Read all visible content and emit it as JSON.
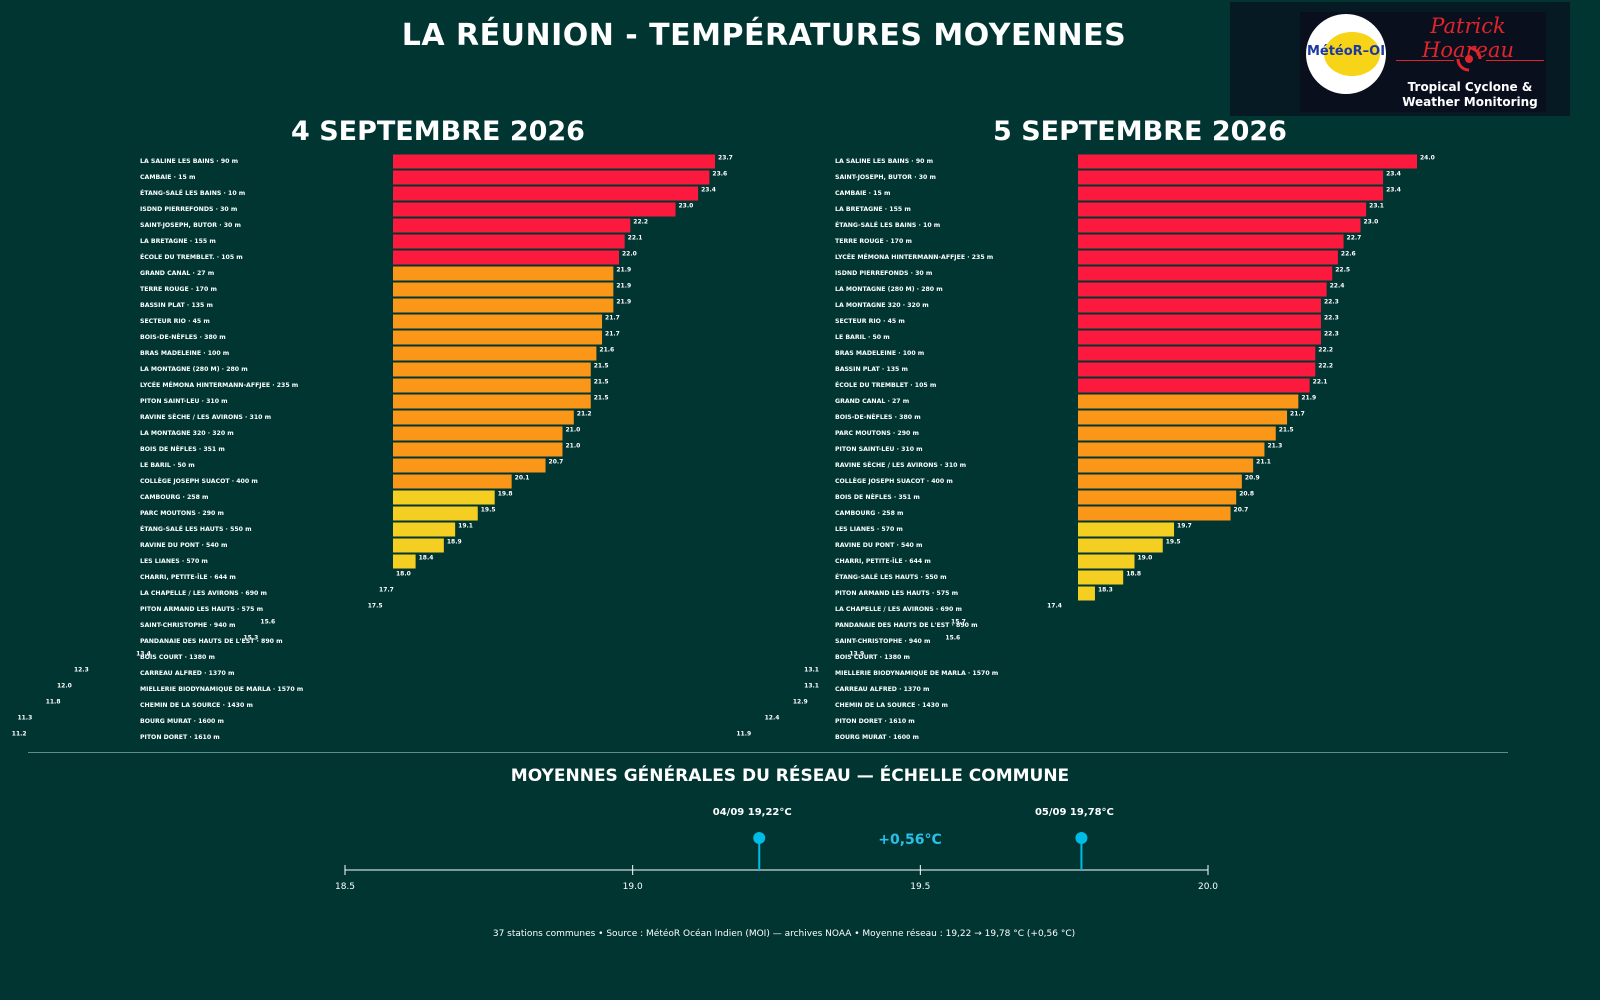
{
  "title": "LA RÉUNION - TEMPÉRATURES MOYENNES",
  "logo": {
    "circle_text": "MétéoR–OI",
    "script_text": "Patrick Hoareau",
    "tagline_1": "Tropical Cyclone &",
    "tagline_2": "Weather Monitoring"
  },
  "colors": {
    "background": "#003532",
    "red": "#fb1a3e",
    "orange": "#fa9718",
    "yellow": "#f4cf22",
    "green": "#61ad2d",
    "teal": "#24a56d",
    "cyan": "#2a98a5",
    "blue": "#2f86bd",
    "marker": "#00bce6"
  },
  "chart_data": [
    {
      "type": "bar",
      "orientation": "horizontal",
      "title": "4 SEPTEMBRE 2026",
      "bar_origin": 18.0,
      "categories": [
        "LA SALINE LES BAINS  ·  90 m",
        "CAMBAIE  ·  15 m",
        "ÉTANG-SALÉ LES BAINS  ·  10 m",
        "ISDND PIERREFONDS  ·  30 m",
        "SAINT-JOSEPH, BUTOR  ·  30 m",
        "LA BRETAGNE  ·  155 m",
        "ÉCOLE DU TREMBLET.  ·  105 m",
        "GRAND CANAL  ·  27 m",
        "TERRE ROUGE  ·  170 m",
        "BASSIN PLAT  ·  135 m",
        "SECTEUR RIO  ·  45 m",
        "BOIS-DE-NÈFLES  ·  380 m",
        "BRAS MADELEINE  ·  100 m",
        "LA MONTAGNE (280 M)  ·  280 m",
        "LYCÉE MÉMONA HINTERMANN-AFFJEE  ·  235 m",
        "PITON SAINT-LEU  ·  310 m",
        "RAVINE SÈCHE / LES AVIRONS  ·  310 m",
        "LA MONTAGNE 320  ·  320 m",
        "BOIS DE NÈFLES  ·  351 m",
        "LE BARIL  ·  50 m",
        "COLLÈGE JOSEPH SUACOT  ·  400 m",
        "CAMBOURG  ·  258 m",
        "PARC MOUTONS  ·  290 m",
        "ÉTANG-SALÉ LES HAUTS  ·  550 m",
        "RAVINE DU PONT  ·  540 m",
        "LES LIANES  ·  570 m",
        "CHARRI, PETITE-ÎLE  ·  644 m",
        "LA CHAPELLE / LES AVIRONS  ·  690 m",
        "PITON ARMAND LES HAUTS  ·  575 m",
        "SAINT-CHRISTOPHE  ·  940 m",
        "PANDANAIE DES HAUTS DE L'EST  ·  890 m",
        "BOIS COURT  ·  1380 m",
        "CARREAU ALFRED  ·  1370 m",
        "MIELLERIE BIODYNAMIQUE DE MARLA  ·  1570 m",
        "CHEMIN DE LA SOURCE  ·  1430 m",
        "BOURG MURAT  ·  1600 m",
        "PITON DORET  ·  1610 m"
      ],
      "values": [
        23.7,
        23.6,
        23.4,
        23.0,
        22.2,
        22.1,
        22.0,
        21.9,
        21.9,
        21.9,
        21.7,
        21.7,
        21.6,
        21.5,
        21.5,
        21.5,
        21.2,
        21.0,
        21.0,
        20.7,
        20.1,
        19.8,
        19.5,
        19.1,
        18.9,
        18.4,
        18.0,
        17.7,
        17.5,
        15.6,
        15.3,
        13.4,
        12.3,
        12.0,
        11.8,
        11.3,
        11.2
      ],
      "value_labels": [
        "23.7",
        "23.6",
        "23.4",
        "23.0",
        "22.2",
        "22.1",
        "22.0",
        "21.9",
        "21.9",
        "21.9",
        "21.7",
        "21.7",
        "21.6",
        "21.5",
        "21.5",
        "21.5",
        "21.2",
        "21.0",
        "21.0",
        "20.7",
        "20.1",
        "19.8",
        "19.5",
        "19.1",
        "18.9",
        "18.4",
        "18.0",
        "17.7",
        "17.5",
        "15.6",
        "15.3",
        "13.4",
        "12.3",
        "12.0",
        "11.8",
        "11.3",
        "11.2"
      ]
    },
    {
      "type": "bar",
      "orientation": "horizontal",
      "title": "5 SEPTEMBRE 2026",
      "bar_origin": 18.0,
      "categories": [
        "LA SALINE LES BAINS  ·  90 m",
        "SAINT-JOSEPH, BUTOR  ·  30 m",
        "CAMBAIE  ·  15 m",
        "LA BRETAGNE  ·  155 m",
        "ÉTANG-SALÉ LES BAINS  ·  10 m",
        "TERRE ROUGE  ·  170 m",
        "LYCÉE MÉMONA HINTERMANN-AFFJEE  ·  235 m",
        "ISDND PIERREFONDS  ·  30 m",
        "LA MONTAGNE (280 M)  ·  280 m",
        "LA MONTAGNE 320  ·  320 m",
        "SECTEUR RIO  ·  45 m",
        "LE BARIL  ·  50 m",
        "BRAS MADELEINE  ·  100 m",
        "BASSIN PLAT  ·  135 m",
        "ÉCOLE DU TREMBLET  ·  105 m",
        "GRAND CANAL  ·  27 m",
        "BOIS-DE-NÈFLES  ·  380 m",
        "PARC MOUTONS  ·  290 m",
        "PITON SAINT-LEU  ·  310 m",
        "RAVINE SÈCHE / LES AVIRONS  ·  310 m",
        "COLLÈGE JOSEPH SUACOT  ·  400 m",
        "BOIS DE NÈFLES  ·  351 m",
        "CAMBOURG  ·  258 m",
        "LES LIANES  ·  570 m",
        "RAVINE DU PONT  ·  540 m",
        "CHARRI, PETITE-ÎLE  ·  644 m",
        "ÉTANG-SALÉ LES HAUTS  ·  550 m",
        "PITON ARMAND LES HAUTS  ·  575 m",
        "LA CHAPELLE / LES AVIRONS  ·  690 m",
        "PANDANAIE DES HAUTS DE L'EST  ·  890 m",
        "SAINT-CHRISTOPHE  ·  940 m",
        "BOIS COURT  ·  1380 m",
        "MIELLERIE BIODYNAMIQUE DE MARLA  ·  1570 m",
        "CARREAU ALFRED  ·  1370 m",
        "CHEMIN DE LA SOURCE  ·  1430 m",
        "PITON DORET  ·  1610 m",
        "BOURG MURAT  ·  1600 m"
      ],
      "values": [
        24.0,
        23.4,
        23.4,
        23.1,
        23.0,
        22.7,
        22.6,
        22.5,
        22.4,
        22.3,
        22.3,
        22.3,
        22.2,
        22.2,
        22.1,
        21.9,
        21.7,
        21.5,
        21.3,
        21.1,
        20.9,
        20.8,
        20.7,
        19.7,
        19.5,
        19.0,
        18.8,
        18.3,
        17.4,
        15.7,
        15.6,
        13.9,
        13.1,
        13.1,
        12.9,
        12.4,
        11.9
      ],
      "value_labels": [
        "24.0",
        "23.4",
        "23.4",
        "23.1",
        "23.0",
        "22.7",
        "22.6",
        "22.5",
        "22.4",
        "22.3",
        "22.3",
        "22.3",
        "22.2",
        "22.2",
        "22.1",
        "21.9",
        "21.7",
        "21.5",
        "21.3",
        "21.1",
        "20.9",
        "20.8",
        "20.7",
        "19.7",
        "19.5",
        "19.0",
        "18.8",
        "18.3",
        "17.4",
        "15.7",
        "15.6",
        "13.9",
        "13.1",
        "13.1",
        "12.9",
        "12.4",
        "11.9"
      ]
    },
    {
      "type": "scatter",
      "title": "MOYENNES GÉNÉRALES DU RÉSEAU — ÉCHELLE COMMUNE",
      "xlim": [
        18.5,
        20.0
      ],
      "xticks": [
        18.5,
        19.0,
        19.5,
        20.0
      ],
      "xtick_labels": [
        "18.5",
        "19.0",
        "19.5",
        "20.0"
      ],
      "points": [
        {
          "label": "04/09  19,22°C",
          "x": 19.22
        },
        {
          "label": "05/09  19,78°C",
          "x": 19.78
        }
      ],
      "delta_label": "+0,56°C"
    }
  ],
  "footer": "37 stations communes • Source : MétéoR Océan Indien (MOI) — archives NOAA • Moyenne réseau : 19,22 → 19,78 °C (+0,56 °C)"
}
